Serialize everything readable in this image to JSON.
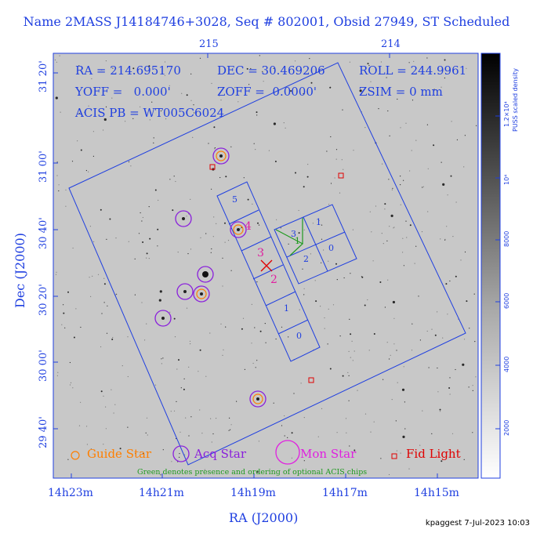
{
  "header": {
    "title": "Name 2MASS J14184746+3028, Seq # 802001, Obsid 27949, ST Scheduled"
  },
  "field_info": {
    "ra": "RA = 214.695170",
    "dec": "DEC = 30.469206",
    "roll": "ROLL = 244.9961",
    "yoff": "YOFF =   0.000'",
    "zoff": "ZOFF =  0.0000'",
    "zsim": "ZSIM = 0 mm",
    "acis_pb": "ACIS PB = WT005C6024"
  },
  "axes": {
    "top_ticks": [
      "215",
      "214"
    ],
    "bottom_ticks": [
      "14h23m",
      "14h21m",
      "14h19m",
      "14h17m",
      "14h15m"
    ],
    "left_ticks": [
      "31 20'",
      "31 00'",
      "30 40'",
      "30 20'",
      "30 00'",
      "29 40'"
    ],
    "xlabel": "RA (J2000)",
    "ylabel": "Dec (J2000)"
  },
  "colorbar": {
    "label": "PUSS scaled density",
    "ticks": [
      "2000",
      "4000",
      "6000",
      "8000",
      "10⁴",
      "1.2×10⁴"
    ]
  },
  "chips": {
    "s_chips": [
      "5",
      "4",
      "3",
      "2",
      "1",
      "0"
    ],
    "i_chips": [
      "3",
      "1",
      "2",
      "0"
    ],
    "optional_order": "1"
  },
  "markers": {
    "guide_numbers": [
      "4",
      "3",
      "2"
    ]
  },
  "legend": {
    "guide_star": "Guide Star",
    "acq_star": "Acq Star",
    "mon_star": "Mon Star",
    "fid_light": "Fid Light",
    "note": "Green denotes presence and ordering of optional ACIS chips"
  },
  "colors": {
    "frame": "#1f3fe0",
    "guide": "#ff7f00",
    "acq": "#8a1fdc",
    "mon": "#e020e0",
    "fid": "#e00000",
    "optional": "#1f9a1f"
  },
  "footer": {
    "stamp": "kpaggest  7-Jul-2023 10:03"
  }
}
